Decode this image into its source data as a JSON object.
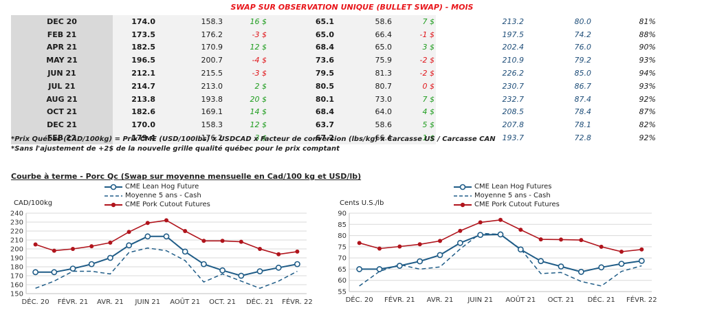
{
  "title": "SWAP SUR OBSERVATION UNIQUE (BULLET SWAP) - MOIS",
  "rows": [
    {
      "month": "DEC 20",
      "qc": "174.0",
      "cme": "158.3",
      "diff": "16 $",
      "diff_sign": "pos",
      "cad": "65.1",
      "usd": "58.6",
      "diff2": "7 $",
      "diff2_sign": "pos",
      "g1": "213.2",
      "g2": "80.0",
      "pct": "81%"
    },
    {
      "month": "FEB 21",
      "qc": "173.5",
      "cme": "176.2",
      "diff": "-3 $",
      "diff_sign": "neg",
      "cad": "65.0",
      "usd": "66.4",
      "diff2": "-1 $",
      "diff2_sign": "neg",
      "g1": "197.5",
      "g2": "74.2",
      "pct": "88%"
    },
    {
      "month": "APR 21",
      "qc": "182.5",
      "cme": "170.9",
      "diff": "12 $",
      "diff_sign": "pos",
      "cad": "68.4",
      "usd": "65.0",
      "diff2": "3 $",
      "diff2_sign": "pos",
      "g1": "202.4",
      "g2": "76.0",
      "pct": "90%"
    },
    {
      "month": "MAY 21",
      "qc": "196.5",
      "cme": "200.7",
      "diff": "-4 $",
      "diff_sign": "neg",
      "cad": "73.6",
      "usd": "75.9",
      "diff2": "-2 $",
      "diff2_sign": "neg",
      "g1": "210.9",
      "g2": "79.2",
      "pct": "93%"
    },
    {
      "month": "JUN 21",
      "qc": "212.1",
      "cme": "215.5",
      "diff": "-3 $",
      "diff_sign": "neg",
      "cad": "79.5",
      "usd": "81.3",
      "diff2": "-2 $",
      "diff2_sign": "neg",
      "g1": "226.2",
      "g2": "85.0",
      "pct": "94%"
    },
    {
      "month": "JUL 21",
      "qc": "214.7",
      "cme": "213.0",
      "diff": "2 $",
      "diff_sign": "pos",
      "cad": "80.5",
      "usd": "80.7",
      "diff2": "0 $",
      "diff2_sign": "neg",
      "g1": "230.7",
      "g2": "86.7",
      "pct": "93%"
    },
    {
      "month": "AUG 21",
      "qc": "213.8",
      "cme": "193.8",
      "diff": "20 $",
      "diff_sign": "pos",
      "cad": "80.1",
      "usd": "73.0",
      "diff2": "7 $",
      "diff2_sign": "pos",
      "g1": "232.7",
      "g2": "87.4",
      "pct": "92%"
    },
    {
      "month": "OCT 21",
      "qc": "182.6",
      "cme": "169.1",
      "diff": "14 $",
      "diff_sign": "pos",
      "cad": "68.4",
      "usd": "64.0",
      "diff2": "4 $",
      "diff2_sign": "pos",
      "g1": "208.5",
      "g2": "78.4",
      "pct": "87%"
    },
    {
      "month": "DEC 21",
      "qc": "170.0",
      "cme": "158.3",
      "diff": "12 $",
      "diff_sign": "pos",
      "cad": "63.7",
      "usd": "58.6",
      "diff2": "5 $",
      "diff2_sign": "pos",
      "g1": "207.8",
      "g2": "78.1",
      "pct": "82%"
    },
    {
      "month": "FEB 22",
      "qc": "179.4",
      "cme": "176.2",
      "diff": "3 $",
      "diff_sign": "pos",
      "cad": "67.2",
      "usd": "66.4",
      "diff2": "1 $",
      "diff2_sign": "pos",
      "g1": "193.7",
      "g2": "72.8",
      "pct": "92%"
    }
  ],
  "notes": {
    "line1": "*Prix Québec (CAD/100kg) = Prix CME (USD/100lbs) x USDCAD x Facteur de conversion (lbs/kg) x Carcasse US / Carcasse CAN",
    "line2": "*Sans l'ajustement de +2$ de la nouvelle grille qualité québec pour le prix comptant"
  },
  "section_title": "Courbe à terme - Porc Qc (Swap sur moyenne mensuelle en Cad/100 kg et USD/lb)",
  "colors": {
    "lean": "#1f5c87",
    "moyenne": "#1f5c87",
    "cutout": "#b0141c",
    "positive": "#1f9d1f",
    "negative": "#e0161b"
  },
  "chart_data": [
    {
      "type": "line",
      "ylabel": "CAD/100kg",
      "ylim": [
        150,
        240
      ],
      "yticks": [
        150,
        160,
        170,
        180,
        190,
        200,
        210,
        220,
        230,
        240
      ],
      "grid": true,
      "legend_position": "top-center",
      "x_tick_labels": [
        "DÉC. 20",
        "FÉVR. 21",
        "AVR. 21",
        "JUIN 21",
        "AOÛT 21",
        "OCT. 21",
        "DÉC. 21",
        "FÉVR. 22"
      ],
      "x": [
        "DÉC. 20",
        "JANV. 21",
        "FÉVR. 21",
        "MARS 21",
        "AVR. 21",
        "MAI 21",
        "JUIN 21",
        "JUIL. 21",
        "AOÛT 21",
        "SEPT. 21",
        "OCT. 21",
        "NOV. 21",
        "DÉC. 21",
        "JANV. 22",
        "FÉVR. 22"
      ],
      "series": [
        {
          "name": "CME Lean Hog Future",
          "style": "solid-hollow-marker",
          "values": [
            174,
            174,
            178,
            183,
            190,
            204,
            214,
            214,
            197,
            183,
            176,
            170,
            175,
            179,
            183
          ]
        },
        {
          "name": "Moyenne 5 ans - Cash",
          "style": "dashed",
          "values": [
            156,
            164,
            175,
            175,
            172,
            196,
            201,
            198,
            187,
            163,
            172,
            164,
            156,
            164,
            175
          ]
        },
        {
          "name": "CME Pork Cutout Futures",
          "style": "solid-filled-marker",
          "values": [
            205,
            198,
            200,
            203,
            207,
            219,
            229,
            232,
            220,
            209,
            209,
            208,
            200,
            194,
            197
          ]
        }
      ]
    },
    {
      "type": "line",
      "ylabel": "Cents U.S./lb",
      "ylim": [
        55,
        90
      ],
      "yticks": [
        55,
        60,
        65,
        70,
        75,
        80,
        85,
        90
      ],
      "grid": true,
      "legend_position": "top-center",
      "x_tick_labels": [
        "DÉC. 20",
        "FÉVR. 21",
        "AVR. 21",
        "JUIN 21",
        "AOÛT 21",
        "OCT. 21",
        "DÉC. 21",
        "FÉVR. 22"
      ],
      "x": [
        "DÉC. 20",
        "JANV. 21",
        "FÉVR. 21",
        "MARS 21",
        "AVR. 21",
        "MAI 21",
        "JUIN 21",
        "JUIL. 21",
        "AOÛT 21",
        "SEPT. 21",
        "OCT. 21",
        "NOV. 21",
        "DÉC. 21",
        "JANV. 22",
        "FÉVR. 22"
      ],
      "series": [
        {
          "name": "CME Lean Hog Futures",
          "style": "solid-hollow-marker",
          "values": [
            65,
            65,
            66.5,
            68.5,
            71.3,
            76.7,
            80.3,
            80.5,
            73.8,
            68.6,
            66.2,
            63.8,
            65.8,
            67.4,
            68.7
          ]
        },
        {
          "name": "Moyenne 5 ans - Cash",
          "style": "dashed",
          "values": [
            57.5,
            64,
            67,
            65,
            66,
            74,
            81,
            80.5,
            74,
            63,
            63.5,
            59.5,
            57.5,
            64,
            66.5
          ]
        },
        {
          "name": "CME Pork Cutout Futures",
          "style": "solid-filled-marker",
          "values": [
            76.7,
            74.2,
            75.1,
            76.1,
            77.6,
            82.1,
            85.9,
            87.0,
            82.6,
            78.3,
            78.2,
            78.0,
            75.0,
            72.8,
            73.8
          ]
        }
      ]
    }
  ]
}
